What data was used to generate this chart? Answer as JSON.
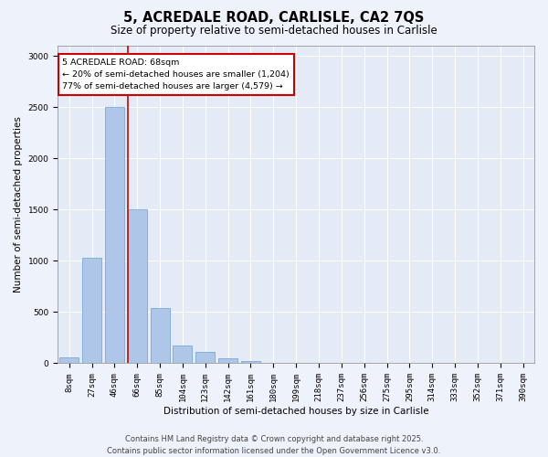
{
  "title": "5, ACREDALE ROAD, CARLISLE, CA2 7QS",
  "subtitle": "Size of property relative to semi-detached houses in Carlisle",
  "xlabel": "Distribution of semi-detached houses by size in Carlisle",
  "ylabel": "Number of semi-detached properties",
  "categories": [
    "8sqm",
    "27sqm",
    "46sqm",
    "66sqm",
    "85sqm",
    "104sqm",
    "123sqm",
    "142sqm",
    "161sqm",
    "180sqm",
    "199sqm",
    "218sqm",
    "237sqm",
    "256sqm",
    "275sqm",
    "295sqm",
    "314sqm",
    "333sqm",
    "352sqm",
    "371sqm",
    "390sqm"
  ],
  "values": [
    60,
    1030,
    2500,
    1500,
    540,
    170,
    115,
    50,
    20,
    5,
    2,
    1,
    1,
    0,
    0,
    0,
    0,
    0,
    0,
    0,
    0
  ],
  "bar_color": "#aec6e8",
  "bar_edge_color": "#6a9fd0",
  "vline_color": "#cc0000",
  "vline_index": 2.6,
  "annotation_text": "5 ACREDALE ROAD: 68sqm\n← 20% of semi-detached houses are smaller (1,204)\n77% of semi-detached houses are larger (4,579) →",
  "annotation_box_color": "#cc0000",
  "footer_line1": "Contains HM Land Registry data © Crown copyright and database right 2025.",
  "footer_line2": "Contains public sector information licensed under the Open Government Licence v3.0.",
  "ylim": [
    0,
    3100
  ],
  "background_color": "#eef2fa",
  "plot_bg_color": "#e4eaf6",
  "grid_color": "#ffffff",
  "title_fontsize": 10.5,
  "subtitle_fontsize": 8.5,
  "axis_label_fontsize": 7.5,
  "tick_fontsize": 6.5,
  "annotation_fontsize": 6.8,
  "footer_fontsize": 6.0
}
